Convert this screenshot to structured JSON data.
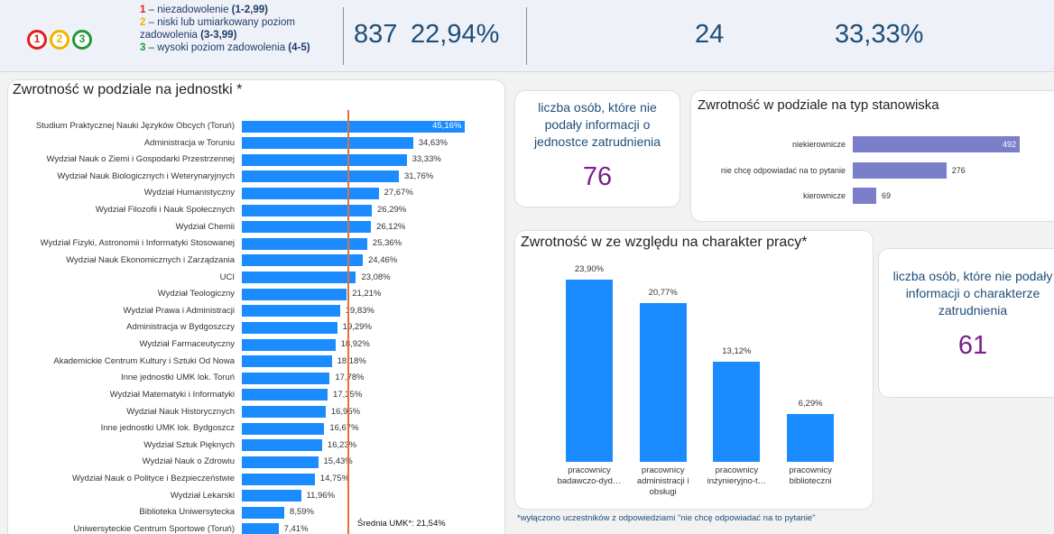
{
  "legend": {
    "badges": [
      "1",
      "2",
      "3"
    ],
    "items": [
      {
        "number": "1",
        "label": " – niezadowolenie ",
        "range": "(1-2,99)",
        "color": "#e02020"
      },
      {
        "number": "2",
        "label": " – niski lub umiarkowany poziom zadowolenia ",
        "range": "(3-3,99)",
        "color": "#f0b400"
      },
      {
        "number": "3",
        "label": " – wysoki poziom zadowolenia ",
        "range": "(4-5)",
        "color": "#1f9a3a"
      }
    ]
  },
  "kpis": [
    837,
    "22,94%",
    24,
    "33,33%"
  ],
  "cards": [
    {
      "text": "liczba osób, które nie podały informacji o jednostce zatrudnienia",
      "value": 76
    },
    {
      "text": "liczba osób, które nie podały informacji o charakterze zatrudnienia",
      "value": 61
    }
  ],
  "footnote": "*wyłączono uczestników z odpowiedziami \"nie chcę odpowiadać na to pytanie\"",
  "chart_data": [
    {
      "type": "hbar",
      "title": "Zwrotność w podziale na jednostki *",
      "color": "#1a8cff",
      "categories": [
        "Studium Praktycznej Nauki Języków Obcych (Toruń)",
        "Administracja w Toruniu",
        "Wydział Nauk o Ziemi i Gospodarki Przestrzennej",
        "Wydział Nauk Biologicznych i Weterynaryjnych",
        "Wydział Humanistyczny",
        "Wydział Filozofii i Nauk Społecznych",
        "Wydział Chemii",
        "Wydział Fizyki, Astronomii i Informatyki Stosowanej",
        "Wydział Nauk Ekonomicznych i Zarządzania",
        "UCI",
        "Wydział Teologiczny",
        "Wydział Prawa i Administracji",
        "Administracja w Bydgoszczy",
        "Wydział Farmaceutyczny",
        "Akademickie Centrum Kultury i Sztuki Od Nowa",
        "Inne jednostki UMK lok. Toruń",
        "Wydział Matematyki i Informatyki",
        "Wydział Nauk Historycznych",
        "Inne jednostki UMK lok. Bydgoszcz",
        "Wydział Sztuk Pięknych",
        "Wydział Nauk o Zdrowiu",
        "Wydział Nauk o Polityce i Bezpieczeństwie",
        "Wydział Lekarski",
        "Biblioteka Uniwersytecka",
        "Uniwersyteckie Centrum Sportowe (Toruń)"
      ],
      "values": [
        45.16,
        34.63,
        33.33,
        31.76,
        27.67,
        26.29,
        26.12,
        25.36,
        24.46,
        23.08,
        21.21,
        19.83,
        19.29,
        18.92,
        18.18,
        17.78,
        17.35,
        16.95,
        16.67,
        16.23,
        15.43,
        14.75,
        11.96,
        8.59,
        7.41
      ],
      "value_labels": [
        "45,16%",
        "34,63%",
        "33,33%",
        "31,76%",
        "27,67%",
        "26,29%",
        "26,12%",
        "25,36%",
        "24,46%",
        "23,08%",
        "21,21%",
        "19,83%",
        "19,29%",
        "18,92%",
        "18,18%",
        "17,78%",
        "17,35%",
        "16,95%",
        "16,67%",
        "16,23%",
        "15,43%",
        "14,75%",
        "11,96%",
        "8,59%",
        "7,41%"
      ],
      "xlim": [
        0,
        46
      ],
      "reference_line": {
        "value": 21.54,
        "label": "Średnia UMK*: 21,54%",
        "color": "#e07040"
      }
    },
    {
      "type": "hbar",
      "title": "Zwrotność w podziale na typ stanowiska",
      "color": "#7b7fc9",
      "categories": [
        "niekierownicze",
        "nie chcę odpowiadać na to pytanie",
        "kierownicze"
      ],
      "values": [
        492,
        276,
        69
      ],
      "xlim": [
        0,
        500
      ]
    },
    {
      "type": "bar",
      "title": "Zwrotność w ze względu na charakter pracy*",
      "color": "#1a8cff",
      "categories": [
        "pracownicy badawczo-dyd…",
        "pracownicy administracji i obsługi",
        "pracownicy inżynieryjno-t…",
        "pracownicy biblioteczni"
      ],
      "values": [
        23.9,
        20.77,
        13.12,
        6.29
      ],
      "value_labels": [
        "23,90%",
        "20,77%",
        "13,12%",
        "6,29%"
      ],
      "ylim": [
        0,
        24
      ]
    }
  ]
}
